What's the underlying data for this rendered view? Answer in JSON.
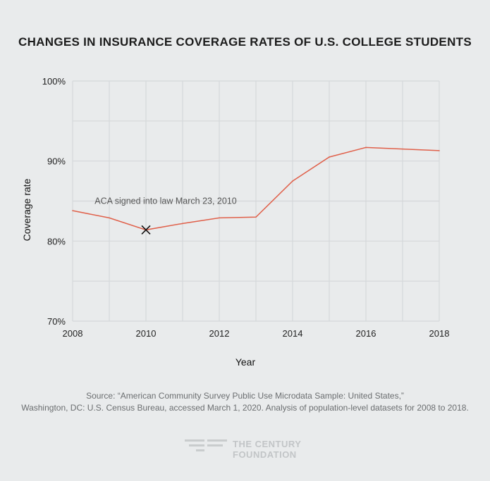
{
  "chart_data": {
    "type": "line",
    "title": "CHANGES IN INSURANCE COVERAGE RATES OF U.S. COLLEGE STUDENTS",
    "xlabel": "Year",
    "ylabel": "Coverage rate",
    "x": [
      2008,
      2009,
      2010,
      2011,
      2012,
      2013,
      2014,
      2015,
      2016,
      2017,
      2018
    ],
    "series": [
      {
        "values": [
          83.8,
          82.9,
          81.4,
          82.2,
          82.9,
          83.0,
          87.5,
          90.5,
          91.7,
          91.5,
          91.3
        ]
      }
    ],
    "xlim": [
      2008,
      2018
    ],
    "ylim": [
      70,
      100
    ],
    "x_ticks": [
      "2008",
      "2010",
      "2012",
      "2014",
      "2016",
      "2018"
    ],
    "y_ticks": [
      "70%",
      "80%",
      "90%",
      "100%"
    ],
    "grid": true,
    "line_color": "#e0604a",
    "annotation": {
      "text": "ACA signed into law March 23, 2010",
      "x": 2010,
      "y": 81.4,
      "marker": "x-mark"
    }
  },
  "source": {
    "line1": "Source:   “American Community Survey Public Use Microdata Sample: United States,”",
    "line2": "Washington, DC: U.S. Census Bureau, accessed March 1, 2020. Analysis of population-level datasets for 2008 to 2018."
  },
  "logo": {
    "line1": "THE CENTURY",
    "line2": "FOUNDATION",
    "color": "#c2c5c7"
  }
}
